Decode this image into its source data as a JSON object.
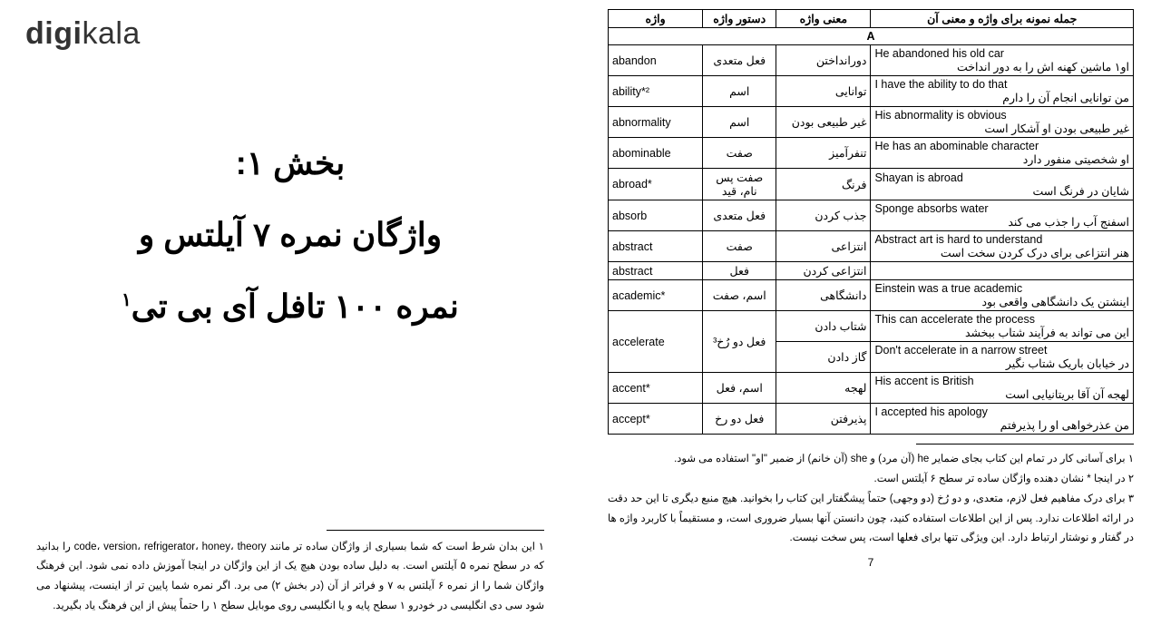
{
  "logo": {
    "part1": "digi",
    "part2": "kala"
  },
  "chapter": {
    "line1": "بخش ۱:",
    "line2": "واژگان نمره ۷ آیلتس و",
    "line3": "نمره ۱۰۰ تافل آی بی تی",
    "line3_sup": "۱"
  },
  "left_footnote": "۱ این بدان شرط است که شما بسیاری از واژگان ساده تر مانند code، version، refrigerator، honey، theory را بدانید که در سطح نمره ۵ آیلتس است. به دلیل ساده بودن هیچ یک از این واژگان در اینجا آموزش داده نمی شود. این فرهنگ واژگان شما را از نمره ۶ آیلتس به ۷ و فراتر از آن (در بخش ۲) می برد. اگر نمره شما پایین تر از اینست، پیشنهاد می شود سی دی انگلیسی در خودرو ۱ سطح پایه و یا انگلیسی روی موبایل سطح ۱ را حتماً پیش از این فرهنگ یاد بگیرید.",
  "table": {
    "headers": {
      "word": "واژه",
      "grammar": "دستور واژه",
      "meaning": "معنی واژه",
      "example": "جمله نمونه برای واژه و معنی آن"
    },
    "section": "A",
    "rows": [
      {
        "word": "abandon",
        "grammar": "فعل متعدی",
        "meaning": "دورانداختن",
        "en": "He abandoned his old car",
        "fa": "او۱ ماشین کهنه اش را به دور انداخت"
      },
      {
        "word": "ability*²",
        "grammar": "اسم",
        "meaning": "توانایی",
        "en": "I have the ability to do that",
        "fa": "من توانایی انجام آن را دارم"
      },
      {
        "word": "abnormality",
        "grammar": "اسم",
        "meaning": "غیر طبیعی بودن",
        "en": "His abnormality is obvious",
        "fa": "غیر طبیعی بودن او آشکار است"
      },
      {
        "word": "abominable",
        "grammar": "صفت",
        "meaning": "تنفرآمیز",
        "en": "He has an abominable character",
        "fa": "او شخصیتی منفور دارد"
      },
      {
        "word": "abroad*",
        "grammar": "صفت پس نام، قید",
        "meaning": "فرنگ",
        "en": "Shayan is abroad",
        "fa": "شایان در فرنگ است"
      },
      {
        "word": "absorb",
        "grammar": "فعل متعدی",
        "meaning": "جذب کردن",
        "en": "Sponge absorbs water",
        "fa": "اسفنج آب را جذب می کند"
      },
      {
        "word": "abstract",
        "grammar": "صفت",
        "meaning": "انتزاعی",
        "en": "Abstract art is hard to understand",
        "fa": "هنر انتزاعی برای درک کردن سخت است"
      },
      {
        "word": "abstract",
        "grammar": "فعل",
        "meaning": "انتزاعی کردن",
        "en": "",
        "fa": ""
      },
      {
        "word": "academic*",
        "grammar": "اسم، صفت",
        "meaning": "دانشگاهی",
        "en": "Einstein was a true academic",
        "fa": "اینشتن یک دانشگاهی واقعی بود"
      }
    ],
    "accelerate": {
      "word": "accelerate",
      "grammar": "فعل دو رُخ³",
      "m1": "شتاب دادن",
      "e1_en": "This can accelerate the process",
      "e1_fa": "این می تواند به فرآیند شتاب ببخشد",
      "m2": "گاز دادن",
      "e2_en": "Don't accelerate in a narrow street",
      "e2_fa": "در خیابان باریک شتاب نگیر"
    },
    "tail": [
      {
        "word": "accent*",
        "grammar": "اسم، فعل",
        "meaning": "لهجه",
        "en": "His accent is British",
        "fa": "لهجه آن آقا بریتانیایی است"
      },
      {
        "word": "accept*",
        "grammar": "فعل دو رخ",
        "meaning": "پذیرفتن",
        "en": "I accepted his apology",
        "fa": "من عذرخواهی او را پذیرفتم"
      }
    ]
  },
  "right_footnotes": [
    "۱ برای آسانی کار در تمام این کتاب بجای ضمایر he (آن مرد) و she (آن خانم) از ضمیر \"او\" استفاده می شود.",
    "۲ در اینجا * نشان دهنده واژگان ساده تر سطح ۶ آیلتس است.",
    "۳ برای درک مفاهیم فعل لازم، متعدی، و دو رُخ (دو وجهی) حتماً پیشگفتار این کتاب را بخوانید. هیچ منبع دیگری تا این حد دقت در ارائه اطلاعات ندارد. پس از این اطلاعات استفاده کنید، چون دانستن آنها بسیار ضروری است، و مستقیماً با کاربرد واژه ها در گفتار و نوشتار ارتباط دارد. این ویژگی تنها برای فعلها است، پس سخت نیست."
  ],
  "page_number": "7"
}
